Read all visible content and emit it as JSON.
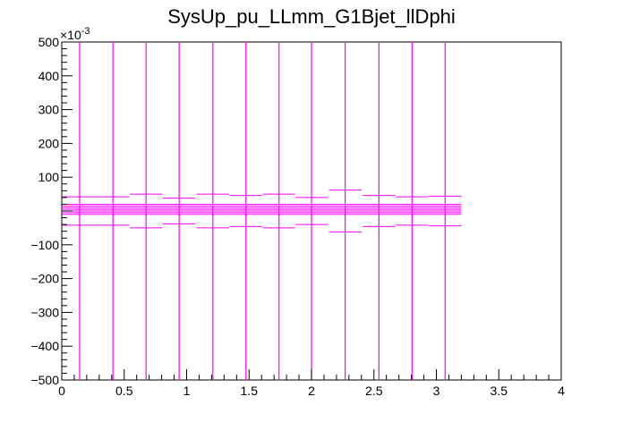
{
  "chart_data": {
    "type": "scatter",
    "title": "SysUp_pu_LLmm_G1Bjet_llDphi",
    "xlabel": "",
    "ylabel": "",
    "xlim": [
      0,
      4
    ],
    "ylim": [
      -500,
      500
    ],
    "y_exponent_label": "×10",
    "y_exponent_power": "-3",
    "x_ticks": [
      "0",
      "0.5",
      "1",
      "1.5",
      "2",
      "2.5",
      "3",
      "3.5",
      "4"
    ],
    "y_ticks": [
      "−500",
      "−400",
      "−300",
      "−200",
      "−100",
      "100",
      "200",
      "300",
      "400",
      "500"
    ],
    "y_tick_values": [
      -500,
      -400,
      -300,
      -200,
      -100,
      100,
      200,
      300,
      400,
      500
    ],
    "x_tick_values": [
      0,
      0.5,
      1,
      1.5,
      2,
      2.5,
      3,
      3.5,
      4
    ],
    "grid": false,
    "legend": "none",
    "color": "#ff00ff",
    "series": [
      {
        "points": [
          {
            "x": 0.143,
            "y": 0,
            "xerr": 0.143,
            "yerr": 42
          },
          {
            "x": 0.41,
            "y": 0,
            "xerr": 0.13,
            "yerr": 42
          },
          {
            "x": 0.675,
            "y": 0,
            "xerr": 0.13,
            "yerr": 50
          },
          {
            "x": 0.94,
            "y": 0,
            "xerr": 0.13,
            "yerr": 38
          },
          {
            "x": 1.21,
            "y": 0,
            "xerr": 0.13,
            "yerr": 50
          },
          {
            "x": 1.475,
            "y": 0,
            "xerr": 0.13,
            "yerr": 46
          },
          {
            "x": 1.74,
            "y": 0,
            "xerr": 0.13,
            "yerr": 50
          },
          {
            "x": 2.0,
            "y": 0,
            "xerr": 0.13,
            "yerr": 40
          },
          {
            "x": 2.27,
            "y": 0,
            "xerr": 0.13,
            "yerr": 62
          },
          {
            "x": 2.54,
            "y": 0,
            "xerr": 0.13,
            "yerr": 46
          },
          {
            "x": 2.805,
            "y": 0,
            "xerr": 0.13,
            "yerr": 42
          },
          {
            "x": 3.07,
            "y": 0,
            "xerr": 0.13,
            "yerr": 44
          }
        ],
        "band_values": [
          -10,
          -5,
          0,
          5,
          10,
          15,
          20
        ]
      }
    ]
  }
}
